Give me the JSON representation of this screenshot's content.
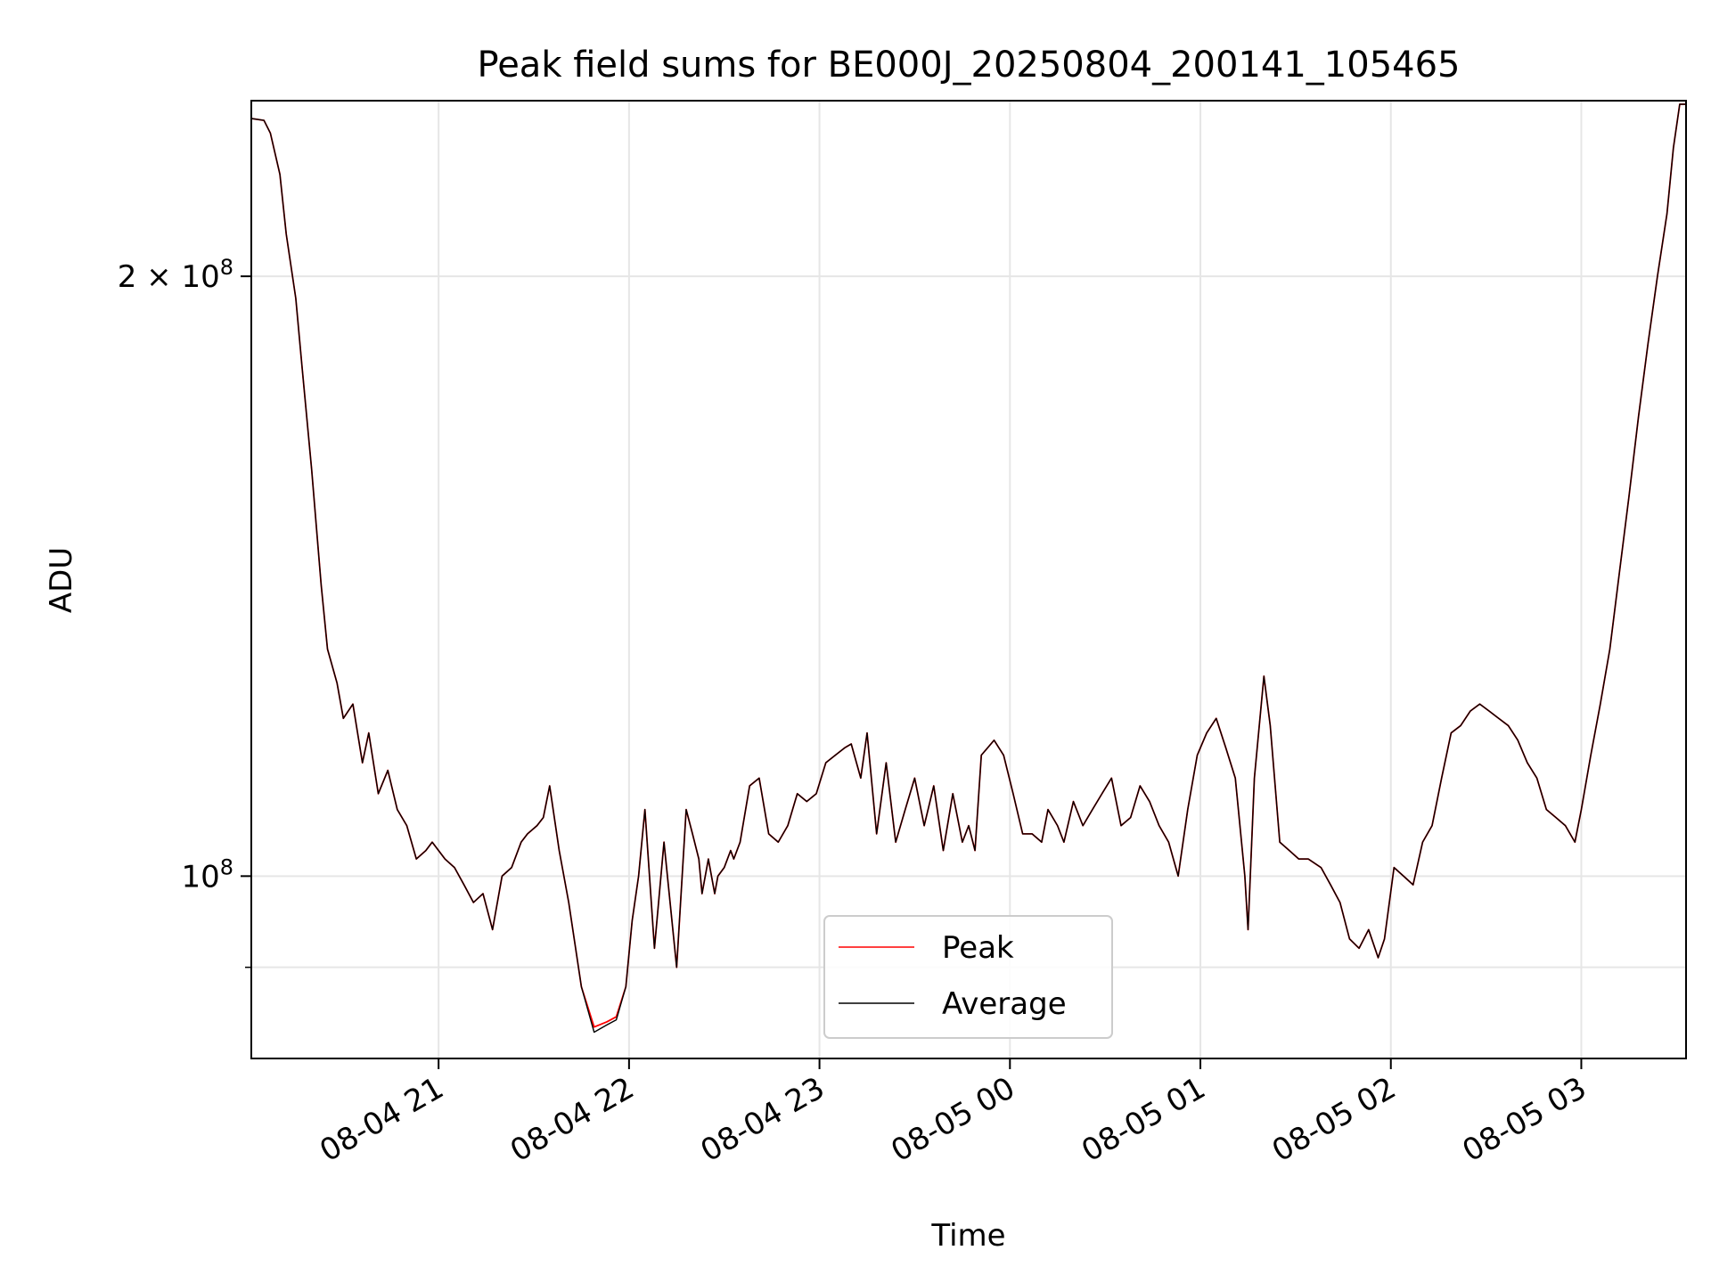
{
  "chart_data": {
    "type": "line",
    "title": "Peak field sums for BE000J_20250804_200141_105465",
    "xlabel": "Time",
    "ylabel": "ADU",
    "yscale": "log",
    "grid": true,
    "legend_position": "bottom-center",
    "x_unit": "time (2025-08-04/05, hours:minutes)",
    "xlim": [
      "2025-08-04 20:01",
      "2025-08-05 03:33"
    ],
    "ylim": [
      81000000,
      245000000
    ],
    "x_ticks": [
      {
        "time": "2025-08-04 21:00",
        "label": "08-04 21"
      },
      {
        "time": "2025-08-04 22:00",
        "label": "08-04 22"
      },
      {
        "time": "2025-08-04 23:00",
        "label": "08-04 23"
      },
      {
        "time": "2025-08-05 00:00",
        "label": "08-05 00"
      },
      {
        "time": "2025-08-05 01:00",
        "label": "08-05 01"
      },
      {
        "time": "2025-08-05 02:00",
        "label": "08-05 02"
      },
      {
        "time": "2025-08-05 03:00",
        "label": "08-05 03"
      }
    ],
    "y_ticks": [
      {
        "value": 100000000,
        "base": "10",
        "exp": "8",
        "prefix": ""
      },
      {
        "value": 200000000,
        "base": "10",
        "exp": "8",
        "prefix": "2 × "
      }
    ],
    "y_minor_ticks": [
      90000000
    ],
    "x": [
      "2025-08-04 20:01",
      "2025-08-04 20:05",
      "2025-08-04 20:07",
      "2025-08-04 20:10",
      "2025-08-04 20:12",
      "2025-08-04 20:15",
      "2025-08-04 20:17",
      "2025-08-04 20:20",
      "2025-08-04 20:23",
      "2025-08-04 20:25",
      "2025-08-04 20:28",
      "2025-08-04 20:30",
      "2025-08-04 20:33",
      "2025-08-04 20:36",
      "2025-08-04 20:38",
      "2025-08-04 20:41",
      "2025-08-04 20:44",
      "2025-08-04 20:47",
      "2025-08-04 20:50",
      "2025-08-04 20:53",
      "2025-08-04 20:56",
      "2025-08-04 20:58",
      "2025-08-04 21:02",
      "2025-08-04 21:05",
      "2025-08-04 21:08",
      "2025-08-04 21:11",
      "2025-08-04 21:14",
      "2025-08-04 21:17",
      "2025-08-04 21:20",
      "2025-08-04 21:23",
      "2025-08-04 21:26",
      "2025-08-04 21:28",
      "2025-08-04 21:31",
      "2025-08-04 21:33",
      "2025-08-04 21:35",
      "2025-08-04 21:38",
      "2025-08-04 21:41",
      "2025-08-04 21:45",
      "2025-08-04 21:49",
      "2025-08-04 21:53",
      "2025-08-04 21:56",
      "2025-08-04 21:59",
      "2025-08-04 22:01",
      "2025-08-04 22:03",
      "2025-08-04 22:05",
      "2025-08-04 22:08",
      "2025-08-04 22:11",
      "2025-08-04 22:15",
      "2025-08-04 22:18",
      "2025-08-04 22:20",
      "2025-08-04 22:22",
      "2025-08-04 22:23",
      "2025-08-04 22:25",
      "2025-08-04 22:27",
      "2025-08-04 22:28",
      "2025-08-04 22:30",
      "2025-08-04 22:32",
      "2025-08-04 22:33",
      "2025-08-04 22:35",
      "2025-08-04 22:38",
      "2025-08-04 22:41",
      "2025-08-04 22:44",
      "2025-08-04 22:47",
      "2025-08-04 22:50",
      "2025-08-04 22:53",
      "2025-08-04 22:56",
      "2025-08-04 22:59",
      "2025-08-04 23:02",
      "2025-08-04 23:05",
      "2025-08-04 23:08",
      "2025-08-04 23:10",
      "2025-08-04 23:13",
      "2025-08-04 23:15",
      "2025-08-04 23:18",
      "2025-08-04 23:21",
      "2025-08-04 23:24",
      "2025-08-04 23:27",
      "2025-08-04 23:30",
      "2025-08-04 23:33",
      "2025-08-04 23:36",
      "2025-08-04 23:39",
      "2025-08-04 23:42",
      "2025-08-04 23:45",
      "2025-08-04 23:47",
      "2025-08-04 23:49",
      "2025-08-04 23:51",
      "2025-08-04 23:53",
      "2025-08-04 23:55",
      "2025-08-04 23:58",
      "2025-08-05 00:01",
      "2025-08-05 00:04",
      "2025-08-05 00:07",
      "2025-08-05 00:10",
      "2025-08-05 00:12",
      "2025-08-05 00:15",
      "2025-08-05 00:17",
      "2025-08-05 00:20",
      "2025-08-05 00:23",
      "2025-08-05 00:26",
      "2025-08-05 00:29",
      "2025-08-05 00:32",
      "2025-08-05 00:35",
      "2025-08-05 00:38",
      "2025-08-05 00:41",
      "2025-08-05 00:44",
      "2025-08-05 00:47",
      "2025-08-05 00:50",
      "2025-08-05 00:53",
      "2025-08-05 00:56",
      "2025-08-05 00:59",
      "2025-08-05 01:02",
      "2025-08-05 01:05",
      "2025-08-05 01:08",
      "2025-08-05 01:11",
      "2025-08-05 01:14",
      "2025-08-05 01:15",
      "2025-08-05 01:17",
      "2025-08-05 01:20",
      "2025-08-05 01:22",
      "2025-08-05 01:25",
      "2025-08-05 01:28",
      "2025-08-05 01:31",
      "2025-08-05 01:34",
      "2025-08-05 01:38",
      "2025-08-05 01:41",
      "2025-08-05 01:44",
      "2025-08-05 01:47",
      "2025-08-05 01:50",
      "2025-08-05 01:53",
      "2025-08-05 01:56",
      "2025-08-05 01:58",
      "2025-08-05 02:01",
      "2025-08-05 02:04",
      "2025-08-05 02:07",
      "2025-08-05 02:10",
      "2025-08-05 02:13",
      "2025-08-05 02:16",
      "2025-08-05 02:19",
      "2025-08-05 02:22",
      "2025-08-05 02:25",
      "2025-08-05 02:28",
      "2025-08-05 02:31",
      "2025-08-05 02:34",
      "2025-08-05 02:37",
      "2025-08-05 02:40",
      "2025-08-05 02:43",
      "2025-08-05 02:46",
      "2025-08-05 02:49",
      "2025-08-05 02:52",
      "2025-08-05 02:55",
      "2025-08-05 02:58",
      "2025-08-05 03:00",
      "2025-08-05 03:03",
      "2025-08-05 03:06",
      "2025-08-05 03:09",
      "2025-08-05 03:12",
      "2025-08-05 03:15",
      "2025-08-05 03:18",
      "2025-08-05 03:21",
      "2025-08-05 03:24",
      "2025-08-05 03:27",
      "2025-08-05 03:29",
      "2025-08-05 03:31",
      "2025-08-05 03:33"
    ],
    "series": [
      {
        "name": "Peak",
        "color": "#ff0000",
        "values": [
          240000000,
          239500000,
          236000000,
          225000000,
          210000000,
          195000000,
          180000000,
          160000000,
          140000000,
          130000000,
          125000000,
          120000000,
          122000000,
          114000000,
          118000000,
          110000000,
          113000000,
          108000000,
          106000000,
          102000000,
          103000000,
          104000000,
          102000000,
          101000000,
          99000000,
          97000000,
          98000000,
          94000000,
          100000000,
          101000000,
          104000000,
          105000000,
          106000000,
          107000000,
          111000000,
          103000000,
          97000000,
          88000000,
          84000000,
          84500000,
          85000000,
          88000000,
          95000000,
          100000000,
          108000000,
          92000000,
          104000000,
          90000000,
          108000000,
          105000000,
          102000000,
          98000000,
          102000000,
          98000000,
          100000000,
          101000000,
          103000000,
          102000000,
          104000000,
          111000000,
          112000000,
          105000000,
          104000000,
          106000000,
          110000000,
          109000000,
          110000000,
          114000000,
          115000000,
          116000000,
          116500000,
          112000000,
          118000000,
          105000000,
          114000000,
          104000000,
          108000000,
          112000000,
          106000000,
          111000000,
          103000000,
          110000000,
          104000000,
          106000000,
          103000000,
          115000000,
          116000000,
          117000000,
          115000000,
          110000000,
          105000000,
          105000000,
          104000000,
          108000000,
          106000000,
          104000000,
          109000000,
          106000000,
          108000000,
          110000000,
          112000000,
          106000000,
          107000000,
          111000000,
          109000000,
          106000000,
          104000000,
          100000000,
          108000000,
          115000000,
          118000000,
          120000000,
          116000000,
          112000000,
          100000000,
          94000000,
          112000000,
          126000000,
          119000000,
          104000000,
          103000000,
          102000000,
          102000000,
          101000000,
          99000000,
          97000000,
          93000000,
          92000000,
          94000000,
          91000000,
          93000000,
          101000000,
          100000000,
          99000000,
          104000000,
          106000000,
          112000000,
          118000000,
          119000000,
          121000000,
          122000000,
          121000000,
          120000000,
          119000000,
          117000000,
          114000000,
          112000000,
          108000000,
          107000000,
          106000000,
          104000000,
          108000000,
          115000000,
          122000000,
          130000000,
          142000000,
          155000000,
          170000000,
          185000000,
          200000000,
          215000000,
          232000000,
          244000000,
          244000000
        ]
      },
      {
        "name": "Average",
        "color": "#000000",
        "values": [
          240000000,
          239500000,
          236000000,
          225000000,
          210000000,
          195000000,
          180000000,
          160000000,
          140000000,
          130000000,
          125000000,
          120000000,
          122000000,
          114000000,
          118000000,
          110000000,
          113000000,
          108000000,
          106000000,
          102000000,
          103000000,
          104000000,
          102000000,
          101000000,
          99000000,
          97000000,
          98000000,
          94000000,
          100000000,
          101000000,
          104000000,
          105000000,
          106000000,
          107000000,
          111000000,
          103000000,
          97000000,
          88000000,
          83500000,
          84200000,
          84700000,
          88000000,
          95000000,
          100000000,
          108000000,
          92000000,
          104000000,
          90000000,
          108000000,
          105000000,
          102000000,
          98000000,
          102000000,
          98000000,
          100000000,
          101000000,
          103000000,
          102000000,
          104000000,
          111000000,
          112000000,
          105000000,
          104000000,
          106000000,
          110000000,
          109000000,
          110000000,
          114000000,
          115000000,
          116000000,
          116500000,
          112000000,
          118000000,
          105000000,
          114000000,
          104000000,
          108000000,
          112000000,
          106000000,
          111000000,
          103000000,
          110000000,
          104000000,
          106000000,
          103000000,
          115000000,
          116000000,
          117000000,
          115000000,
          110000000,
          105000000,
          105000000,
          104000000,
          108000000,
          106000000,
          104000000,
          109000000,
          106000000,
          108000000,
          110000000,
          112000000,
          106000000,
          107000000,
          111000000,
          109000000,
          106000000,
          104000000,
          100000000,
          108000000,
          115000000,
          118000000,
          120000000,
          116000000,
          112000000,
          100000000,
          94000000,
          112000000,
          126000000,
          119000000,
          104000000,
          103000000,
          102000000,
          102000000,
          101000000,
          99000000,
          97000000,
          93000000,
          92000000,
          94000000,
          91000000,
          93000000,
          101000000,
          100000000,
          99000000,
          104000000,
          106000000,
          112000000,
          118000000,
          119000000,
          121000000,
          122000000,
          121000000,
          120000000,
          119000000,
          117000000,
          114000000,
          112000000,
          108000000,
          107000000,
          106000000,
          104000000,
          108000000,
          115000000,
          122000000,
          130000000,
          142000000,
          155000000,
          170000000,
          185000000,
          200000000,
          215000000,
          232000000,
          244000000,
          244000000
        ]
      }
    ]
  }
}
